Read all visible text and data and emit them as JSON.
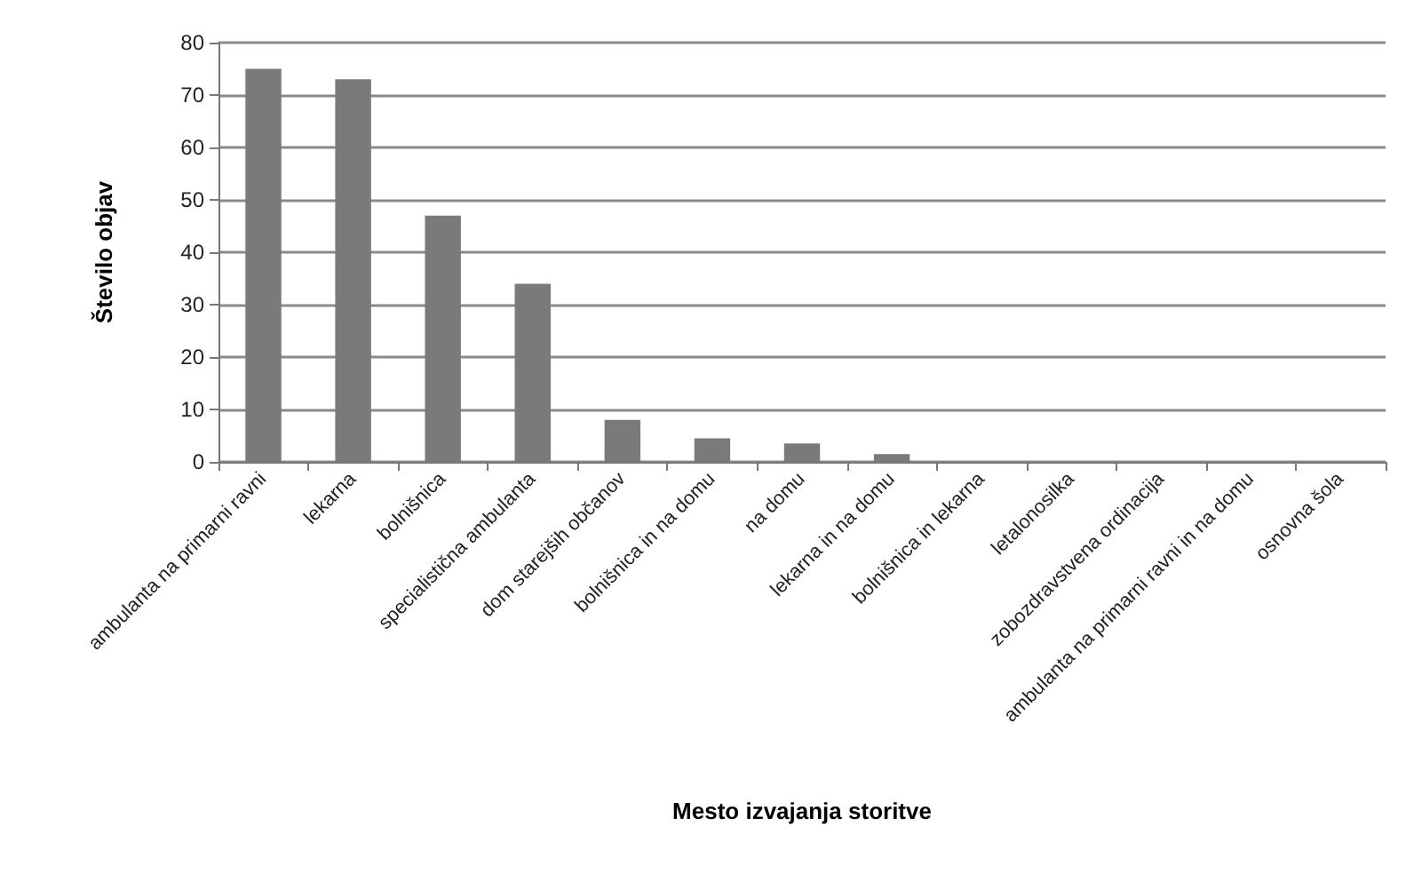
{
  "chart_data": {
    "type": "bar",
    "xlabel": "Mesto izvajanja storitve",
    "ylabel": "Število objav",
    "categories": [
      "ambulanta na primarni ravni",
      "lekarna",
      "bolnišnica",
      "specialistična ambulanta",
      "dom starejših občanov",
      "bolnišnica in na domu",
      "na domu",
      "lekarna in na domu",
      "bolnišnica in lekarna",
      "letalonosilka",
      "zobozdravstvena ordinacija",
      "ambulanta na primarni ravni in na domu",
      "osnovna šola"
    ],
    "values": [
      75,
      73,
      47,
      34,
      8,
      4.5,
      3.5,
      1.5,
      null,
      null,
      null,
      null,
      null
    ],
    "color": "#7a7a7a",
    "ylim": [
      0,
      80
    ],
    "yticks": [
      0,
      10,
      20,
      30,
      40,
      50,
      60,
      70,
      80
    ],
    "grid": "y"
  }
}
